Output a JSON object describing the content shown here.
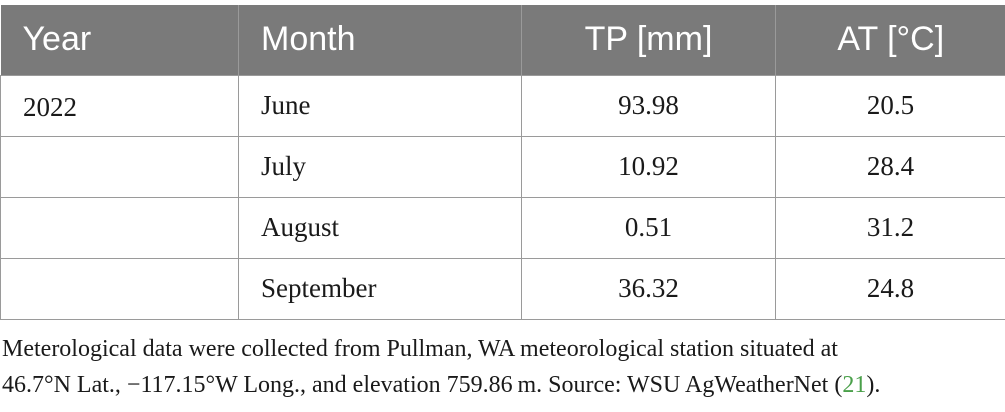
{
  "table": {
    "headers": [
      "Year",
      "Month",
      "TP [mm]",
      "AT [°C]"
    ],
    "rows": [
      {
        "year": "2022",
        "month": "June",
        "tp": "93.98",
        "at": "20.5"
      },
      {
        "year": "",
        "month": "July",
        "tp": "10.92",
        "at": "28.4"
      },
      {
        "year": "",
        "month": "August",
        "tp": "0.51",
        "at": "31.2"
      },
      {
        "year": "",
        "month": "September",
        "tp": "36.32",
        "at": "24.8"
      }
    ]
  },
  "footnote": {
    "line1": "Meterological data were collected from Pullman, WA meteorological station situated at",
    "line2_before": "46.7°N Lat., −117.15°W Long., and elevation 759.86 m. Source: WSU AgWeatherNet (",
    "ref": "21",
    "line2_after": ")."
  }
}
